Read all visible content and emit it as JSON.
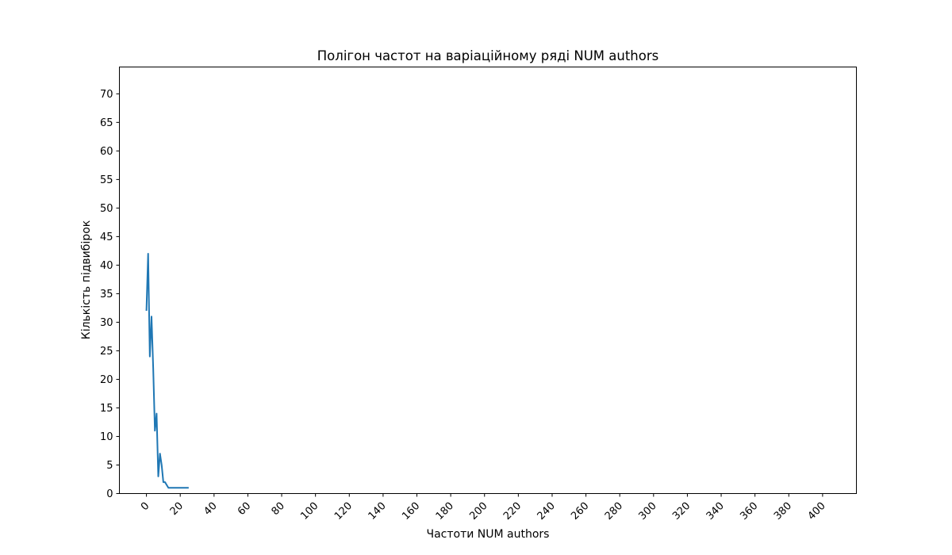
{
  "chart_data": {
    "type": "line",
    "title": "Полігон частот на варіаційному ряді NUM authors",
    "xlabel": "Частоти NUM authors",
    "ylabel": "Кількість підвибірок",
    "xlim": [
      -16,
      420
    ],
    "ylim": [
      0,
      74.7
    ],
    "xticks": [
      0,
      20,
      40,
      60,
      80,
      100,
      120,
      140,
      160,
      180,
      200,
      220,
      240,
      260,
      280,
      300,
      320,
      340,
      360,
      380,
      400
    ],
    "yticks": [
      0,
      5,
      10,
      15,
      20,
      25,
      30,
      35,
      40,
      45,
      50,
      55,
      60,
      65,
      70
    ],
    "grid": false,
    "series": [
      {
        "color": "#1f77b4",
        "x": [
          0,
          1,
          2,
          3,
          4,
          5,
          6,
          7,
          8,
          9,
          10,
          11,
          12,
          13,
          14,
          15,
          16,
          17,
          18,
          19,
          20,
          21,
          22,
          23,
          24,
          25
        ],
        "y": [
          32,
          42,
          24,
          31,
          22,
          11,
          14,
          3,
          7,
          5,
          2,
          2,
          1.5,
          1,
          1,
          1,
          1,
          1,
          1,
          1,
          1,
          1,
          1,
          1,
          1,
          1
        ]
      }
    ]
  }
}
